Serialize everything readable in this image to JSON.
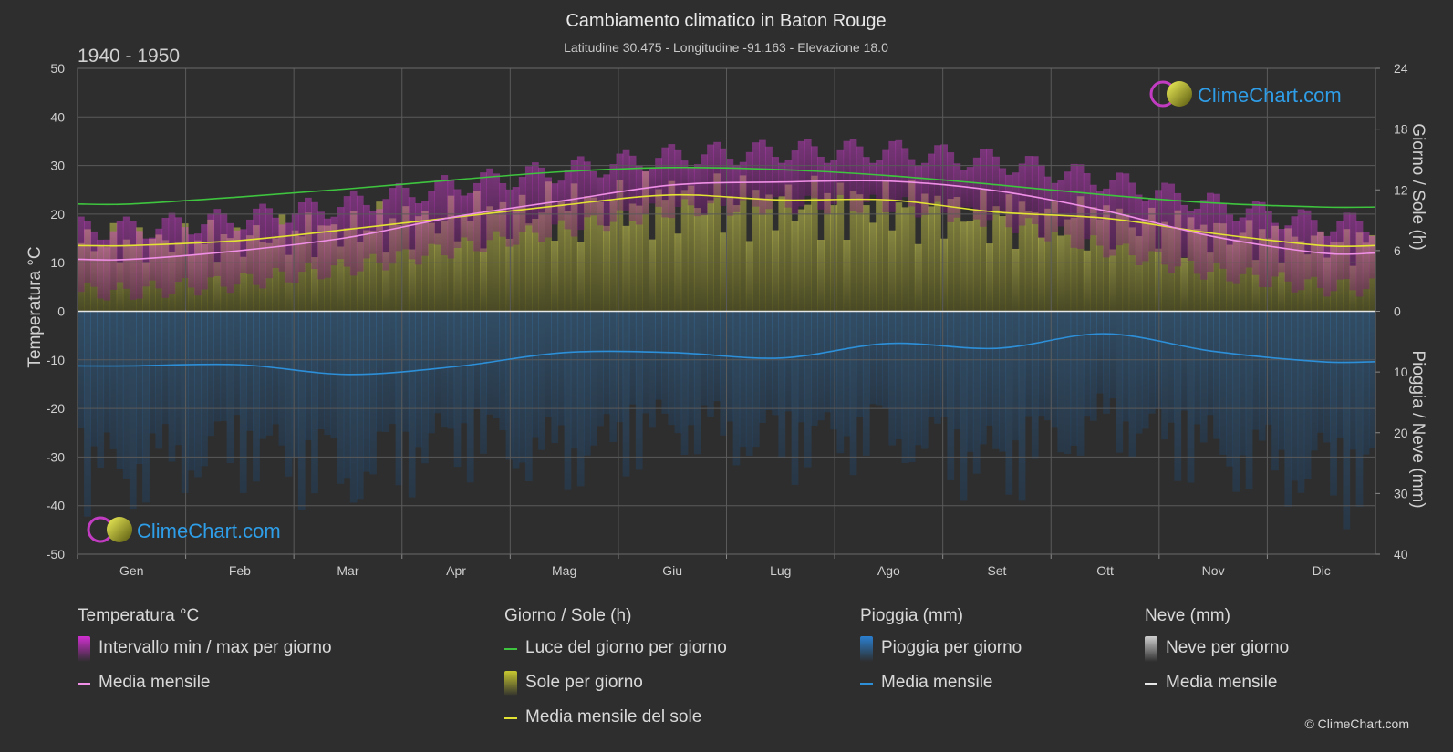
{
  "header": {
    "title": "Cambiamento climatico in Baton Rouge",
    "subtitle": "Latitudine 30.475 - Longitudine -91.163 - Elevazione 18.0",
    "period": "1940 - 1950"
  },
  "brand": {
    "name": "ClimeChart.com",
    "copyright": "© ClimeChart.com"
  },
  "axes": {
    "left_label": "Temperatura °C",
    "right_top_label": "Giorno / Sole (h)",
    "right_bottom_label": "Pioggia / Neve (mm)",
    "left_ticks": [
      "50",
      "40",
      "30",
      "20",
      "10",
      "0",
      "-10",
      "-20",
      "-30",
      "-40",
      "-50"
    ],
    "right_top_ticks": [
      "24",
      "18",
      "12",
      "6",
      "0"
    ],
    "right_bottom_ticks": [
      "10",
      "20",
      "30",
      "40"
    ]
  },
  "chart_data": {
    "type": "area",
    "categories": [
      "Gen",
      "Feb",
      "Mar",
      "Apr",
      "Mag",
      "Giu",
      "Lug",
      "Ago",
      "Set",
      "Ott",
      "Nov",
      "Dic"
    ],
    "temperature_ylim": [
      -50,
      50
    ],
    "sun_ylim": [
      0,
      24
    ],
    "precip_ylim": [
      0,
      40
    ],
    "grid": true,
    "series": [
      {
        "name": "Luce del giorno per giorno",
        "axis": "sun_h",
        "color": "#3ec43e",
        "values": [
          10.6,
          11.3,
          12.1,
          13.0,
          13.8,
          14.2,
          14.0,
          13.4,
          12.5,
          11.5,
          10.7,
          10.3
        ]
      },
      {
        "name": "Media mensile del sole",
        "axis": "sun_h",
        "color": "#e3e334",
        "values": [
          6.5,
          7.0,
          8.1,
          9.3,
          10.5,
          11.5,
          11.0,
          11.0,
          9.8,
          9.2,
          7.7,
          6.5
        ]
      },
      {
        "name": "Media mensile",
        "axis": "temp_c",
        "group": "Temperatura °C",
        "color": "#ef8fe6",
        "values": [
          10.7,
          12.5,
          15.2,
          19.5,
          22.8,
          26.0,
          26.6,
          26.8,
          24.8,
          20.7,
          15.4,
          12.0
        ]
      },
      {
        "name": "Media mensile",
        "axis": "precip_mm",
        "group": "Pioggia (mm)",
        "color": "#2d8fd8",
        "values": [
          9.0,
          8.8,
          10.4,
          9.1,
          6.8,
          6.8,
          7.7,
          5.3,
          6.1,
          3.7,
          6.6,
          8.3
        ]
      },
      {
        "name": "Intervallo min / max per giorno",
        "axis": "temp_c",
        "type": "band",
        "min": [
          4,
          6,
          9,
          13,
          17,
          21,
          22,
          22,
          19,
          13,
          8,
          5
        ],
        "max": [
          17,
          19,
          22,
          26,
          29,
          32,
          33,
          33,
          31,
          27,
          22,
          18
        ]
      },
      {
        "name": "Pioggia per giorno",
        "axis": "precip_mm",
        "type": "bars",
        "values": [
          35,
          30,
          36,
          28,
          32,
          25,
          29,
          27,
          34,
          24,
          31,
          36
        ]
      }
    ]
  },
  "legend": {
    "groups": [
      {
        "title": "Temperatura °C",
        "items": [
          {
            "label": "Intervallo min / max per giorno",
            "kind": "box",
            "color": "#d12fd1"
          },
          {
            "label": "Media mensile",
            "kind": "line",
            "color": "#ef8fe6"
          }
        ]
      },
      {
        "title": "Giorno / Sole (h)",
        "items": [
          {
            "label": "Luce del giorno per giorno",
            "kind": "line",
            "color": "#3ec43e"
          },
          {
            "label": "Sole per giorno",
            "kind": "box",
            "color": "#c8c830"
          },
          {
            "label": "Media mensile del sole",
            "kind": "line",
            "color": "#e3e334"
          }
        ]
      },
      {
        "title": "Pioggia (mm)",
        "items": [
          {
            "label": "Pioggia per giorno",
            "kind": "box",
            "color": "#2a7fd0"
          },
          {
            "label": "Media mensile",
            "kind": "line",
            "color": "#2d8fd8"
          }
        ]
      },
      {
        "title": "Neve (mm)",
        "items": [
          {
            "label": "Neve per giorno",
            "kind": "box",
            "color": "#cfcfcf"
          },
          {
            "label": "Media mensile",
            "kind": "line",
            "color": "#e6e6e6"
          }
        ]
      }
    ]
  }
}
